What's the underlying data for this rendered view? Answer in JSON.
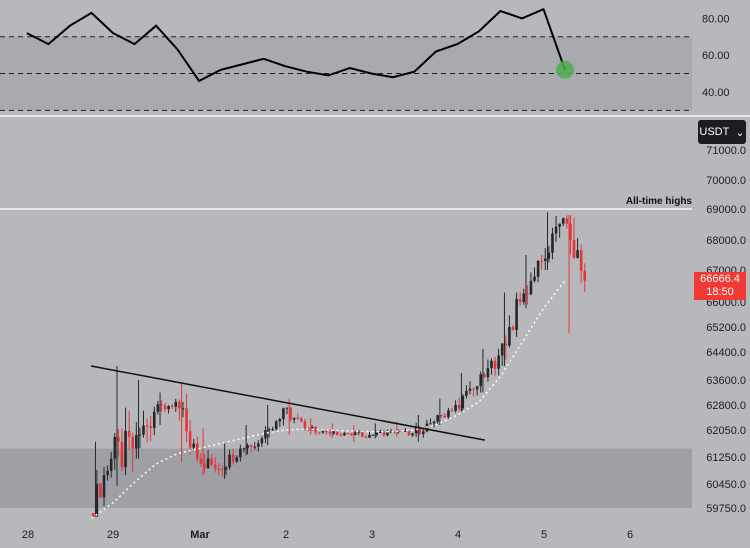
{
  "ui": {
    "currency": "USDT",
    "last_price": "66666.4",
    "countdown": "18:50",
    "annotation": "All-time highs"
  },
  "colors": {
    "background": "#b7b8bc",
    "oscillator_band": "#a9aaaf",
    "support_zone": "#9fa0a5",
    "candle_up": "#26272b",
    "candle_down": "#e2363a",
    "oscillator_line": "#000000",
    "moving_average": "#ffffff",
    "marker": "#4caf50",
    "price_tag": "#f23a34"
  },
  "chart_data": [
    {
      "type": "line",
      "name_role": "oscillator",
      "ylim": [
        28,
        90
      ],
      "yticks": [
        "80.00",
        "60.00",
        "40.00"
      ],
      "yticks_values": [
        80,
        60,
        40
      ],
      "band": [
        30,
        70
      ],
      "midline": 50,
      "x": [
        "Feb 28 00:00",
        "Feb 28 06:00",
        "Feb 28 12:00",
        "Feb 28 18:00",
        "Feb 29 00:00",
        "Feb 29 06:00",
        "Feb 29 12:00",
        "Feb 29 18:00",
        "Mar 1 00:00",
        "Mar 1 06:00",
        "Mar 1 12:00",
        "Mar 1 18:00",
        "Mar 2 00:00",
        "Mar 2 06:00",
        "Mar 2 12:00",
        "Mar 2 18:00",
        "Mar 3 00:00",
        "Mar 3 06:00",
        "Mar 3 12:00",
        "Mar 3 18:00",
        "Mar 4 00:00",
        "Mar 4 06:00",
        "Mar 4 12:00",
        "Mar 4 18:00",
        "Mar 5 00:00",
        "Mar 5 06:00"
      ],
      "values": [
        72,
        66,
        76,
        83,
        72,
        66,
        76,
        63,
        46,
        52,
        55,
        58,
        54,
        51,
        49,
        53,
        50,
        48,
        51,
        62,
        66,
        73,
        84,
        80,
        85,
        52
      ],
      "marker_point": {
        "x": "Mar 5 06:00",
        "y": 52
      }
    },
    {
      "type": "candlestick",
      "name_role": "price",
      "ylim": [
        59450,
        71200
      ],
      "yticks": [
        "71000.0",
        "70000.0",
        "69000.0",
        "68000.0",
        "67000.0",
        "66000.0",
        "65200.0",
        "64400.0",
        "63600.0",
        "62800.0",
        "62050.0",
        "61250.0",
        "60450.0",
        "59750.0"
      ],
      "yticks_values": [
        71000,
        70000,
        69000,
        68000,
        67000,
        66000,
        65200,
        64400,
        63600,
        62800,
        62050,
        61250,
        60450,
        59750
      ],
      "xticks": [
        "28",
        "29",
        "Mar",
        "2",
        "3",
        "4",
        "5",
        "6"
      ],
      "all_time_high": 69000,
      "support_zone": [
        59750,
        61500
      ],
      "trendline": {
        "from": {
          "x": "Feb 29 00:00",
          "y": 64000
        },
        "to": {
          "x": "Mar 4 06:00",
          "y": 61750
        }
      },
      "x": [
        "Feb 28 18:00",
        "Feb 29 00:00",
        "Feb 29 06:00",
        "Feb 29 12:00",
        "Feb 29 18:00",
        "Mar 1 00:00",
        "Mar 1 06:00",
        "Mar 1 12:00",
        "Mar 1 18:00",
        "Mar 2 00:00",
        "Mar 2 06:00",
        "Mar 2 12:00",
        "Mar 2 18:00",
        "Mar 3 00:00",
        "Mar 3 06:00",
        "Mar 3 12:00",
        "Mar 3 18:00",
        "Mar 4 00:00",
        "Mar 4 06:00",
        "Mar 4 12:00",
        "Mar 4 18:00",
        "Mar 5 00:00",
        "Mar 5 06:00"
      ],
      "open": [
        59600,
        61200,
        61500,
        62600,
        62900,
        61200,
        60900,
        61500,
        61800,
        62700,
        62100,
        62000,
        61950,
        61900,
        62000,
        61950,
        62300,
        62800,
        63400,
        64300,
        66000,
        67300,
        68700
      ],
      "high": [
        61700,
        64000,
        63600,
        63200,
        63500,
        62100,
        61700,
        62200,
        62800,
        63000,
        62400,
        62250,
        62200,
        62250,
        62300,
        62500,
        63000,
        63800,
        64500,
        66300,
        67500,
        68900,
        68800
      ],
      "low": [
        59500,
        60400,
        61200,
        62200,
        61100,
        60700,
        60600,
        61300,
        61600,
        61900,
        61900,
        61800,
        61700,
        61800,
        61850,
        61700,
        62200,
        62600,
        63200,
        64000,
        65800,
        67000,
        65000
      ],
      "close": [
        61200,
        61500,
        62600,
        62900,
        61200,
        60900,
        61500,
        61800,
        62700,
        62100,
        62000,
        61950,
        61900,
        62000,
        61950,
        62300,
        62800,
        63400,
        64300,
        66000,
        67300,
        68700,
        66666
      ],
      "moving_average": [
        59450,
        59900,
        60500,
        61050,
        61350,
        61500,
        61650,
        61800,
        61950,
        62050,
        62080,
        62050,
        62020,
        62000,
        62000,
        62050,
        62200,
        62500,
        62900,
        63700,
        64700,
        65800,
        66666
      ]
    }
  ]
}
